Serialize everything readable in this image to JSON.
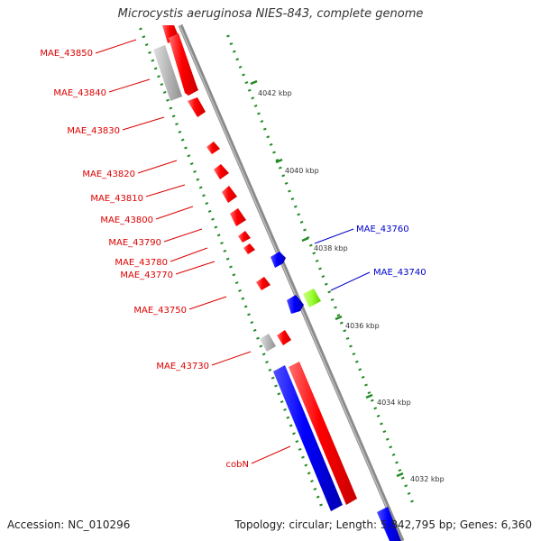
{
  "title": "Microcystis aeruginosa NIES-843, complete genome",
  "footer": {
    "accession": "Accession: NC_010296",
    "summary": "Topology: circular; Length: 5,842,795 bp; Genes: 6,360"
  },
  "colors": {
    "forward_gene": "#ff0000",
    "reverse_gene": "#0000ff",
    "rna_or_pseudo": "#b0b0b0",
    "highlight_gene": "#99ff33",
    "tick": "#228b22",
    "backbone": "#8a8a8a"
  },
  "kbp_labels": [
    "4042 kbp",
    "4040 kbp",
    "4038 kbp",
    "4036 kbp",
    "4034 kbp",
    "4032 kbp"
  ],
  "left_labels": [
    "MAE_43850",
    "MAE_43840",
    "MAE_43830",
    "MAE_43820",
    "MAE_43810",
    "MAE_43800",
    "MAE_43790",
    "MAE_43780",
    "MAE_43770",
    "MAE_43750",
    "MAE_43730",
    "cobN"
  ],
  "right_labels": [
    "MAE_43760",
    "MAE_43740"
  ]
}
